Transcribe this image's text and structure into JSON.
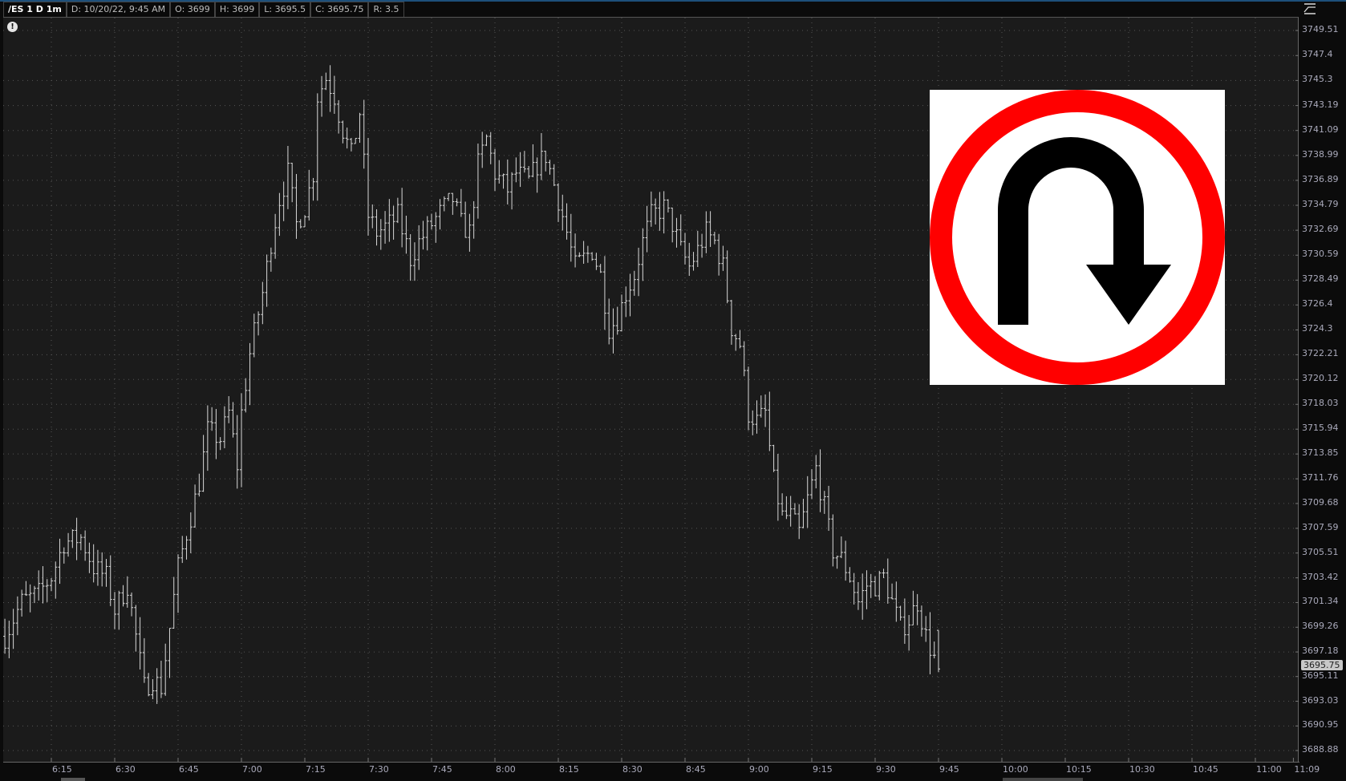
{
  "header": {
    "symbol": "/ES 1 D 1m",
    "date": "D: 10/20/22, 9:45 AM",
    "open": "O: 3699",
    "high": "H: 3699",
    "low": "L: 3695.5",
    "close": "C: 3695.75",
    "range": "R: 3.5"
  },
  "icons": {
    "alert": "exclamation-circle-icon",
    "style": "chart-style-icon",
    "sign": "u-turn-road-sign"
  },
  "last_price_label": "3695.75",
  "colors": {
    "background": "#1b1b1b",
    "bars": "#d8d8d8",
    "sign_ring": "#ff0000",
    "sign_arrow": "#000000"
  },
  "chart_data": {
    "type": "ohlc-bar",
    "symbol": "/ES",
    "interval": "1m",
    "ylim": [
      3687.8,
      3750.5
    ],
    "grid": true,
    "price_ticks": [
      "3749.51",
      "3747.4",
      "3745.3",
      "3743.19",
      "3741.09",
      "3738.99",
      "3736.89",
      "3734.79",
      "3732.69",
      "3730.59",
      "3728.49",
      "3726.4",
      "3724.3",
      "3722.21",
      "3720.12",
      "3718.03",
      "3715.94",
      "3713.85",
      "3711.76",
      "3709.68",
      "3707.59",
      "3705.51",
      "3703.42",
      "3701.34",
      "3699.26",
      "3697.18",
      "3695.11",
      "3693.03",
      "3690.95",
      "3688.88"
    ],
    "time_ticks": [
      "6:15",
      "6:30",
      "6:45",
      "7:00",
      "7:15",
      "7:30",
      "7:45",
      "8:00",
      "8:15",
      "8:30",
      "8:45",
      "9:00",
      "9:15",
      "9:30",
      "9:45",
      "10:00",
      "10:15",
      "10:30",
      "10:45",
      "11:00",
      "11:09"
    ],
    "price_path_times": [
      "6:04",
      "6:08",
      "6:12",
      "6:15",
      "6:18",
      "6:22",
      "6:25",
      "6:28",
      "6:30",
      "6:33",
      "6:35",
      "6:37",
      "6:39",
      "6:41",
      "6:43",
      "6:45",
      "6:48",
      "6:50",
      "6:52",
      "6:55",
      "6:57",
      "6:59",
      "7:00",
      "7:02",
      "7:05",
      "7:07",
      "7:09",
      "7:11",
      "7:13",
      "7:15",
      "7:17",
      "7:18",
      "7:20",
      "7:22",
      "7:24",
      "7:26",
      "7:28",
      "7:30",
      "7:32",
      "7:35",
      "7:37",
      "7:40",
      "7:42",
      "7:45",
      "7:48",
      "7:50",
      "7:52",
      "7:54",
      "7:56",
      "7:58",
      "8:00",
      "8:03",
      "8:05",
      "8:08",
      "8:10",
      "8:12",
      "8:15",
      "8:17",
      "8:19",
      "8:21",
      "8:23",
      "8:25",
      "8:27",
      "8:29",
      "8:31",
      "8:33",
      "8:35",
      "8:37",
      "8:40",
      "8:42",
      "8:44",
      "8:46",
      "8:48",
      "8:50",
      "8:52",
      "8:54",
      "8:56",
      "8:58",
      "9:00",
      "9:02",
      "9:04",
      "9:06",
      "9:08",
      "9:10",
      "9:12",
      "9:14",
      "9:16",
      "9:18",
      "9:20",
      "9:22",
      "9:24",
      "9:26",
      "9:28",
      "9:30",
      "9:32",
      "9:34",
      "9:36",
      "9:38",
      "9:40",
      "9:42",
      "9:45"
    ],
    "price_path_values": [
      3698.5,
      3701.4,
      3702.1,
      3703.5,
      3706.4,
      3706.8,
      3704.3,
      3703.5,
      3700.7,
      3702.8,
      3698.5,
      3694.2,
      3694.9,
      3694.2,
      3699.2,
      3704.3,
      3708.6,
      3711.5,
      3715.8,
      3715.1,
      3717.3,
      3712.9,
      3717.3,
      3722.3,
      3727.4,
      3731.7,
      3735.3,
      3737.5,
      3733.2,
      3734.6,
      3737.5,
      3744.0,
      3745.5,
      3744.0,
      3741.1,
      3739.0,
      3742.6,
      3733.9,
      3732.5,
      3733.2,
      3733.9,
      3730.3,
      3731.7,
      3733.2,
      3734.6,
      3735.3,
      3733.2,
      3732.5,
      3738.2,
      3740.4,
      3737.5,
      3736.1,
      3737.5,
      3736.8,
      3738.2,
      3739.0,
      3735.3,
      3732.5,
      3729.6,
      3730.3,
      3731.0,
      3728.9,
      3724.5,
      3725.2,
      3727.4,
      3728.9,
      3731.7,
      3733.9,
      3734.6,
      3733.2,
      3731.0,
      3729.6,
      3731.0,
      3732.5,
      3731.7,
      3729.6,
      3724.5,
      3723.1,
      3717.3,
      3716.6,
      3717.3,
      3711.5,
      3708.6,
      3708.6,
      3707.2,
      3710.0,
      3712.6,
      3709.3,
      3705.7,
      3705.0,
      3703.5,
      3701.4,
      3702.8,
      3702.8,
      3703.5,
      3701.4,
      3699.2,
      3699.9,
      3701.4,
      3698.5,
      3695.75
    ],
    "last_bar": {
      "time": "9:45",
      "open": 3699,
      "high": 3699,
      "low": 3695.5,
      "close": 3695.75
    }
  }
}
